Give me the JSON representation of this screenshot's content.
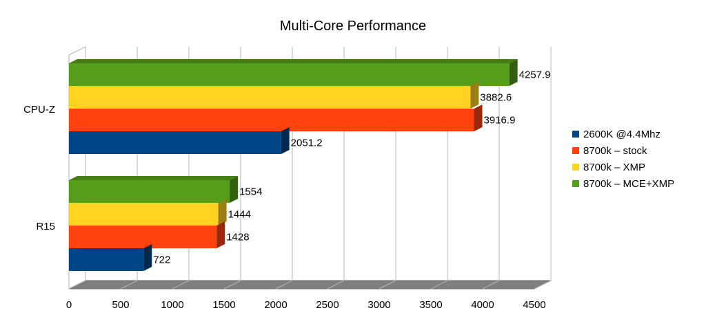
{
  "chart_data": {
    "type": "bar",
    "orientation": "horizontal",
    "title": "Multi-Core Performance",
    "categories": [
      "CPU-Z",
      "R15"
    ],
    "series": [
      {
        "name": "2600K @4.4Mhz",
        "values": [
          2051.2,
          722
        ],
        "color": "#004586",
        "labels": [
          "2051.2",
          "722"
        ]
      },
      {
        "name": "8700k – stock",
        "values": [
          3916.9,
          1428
        ],
        "color": "#ff420e",
        "labels": [
          "3916.9",
          "1428"
        ]
      },
      {
        "name": "8700k – XMP",
        "values": [
          3882.6,
          1444
        ],
        "color": "#ffd320",
        "labels": [
          "3882.6",
          "1444"
        ]
      },
      {
        "name": "8700k – MCE+XMP",
        "values": [
          4257.9,
          1554
        ],
        "color": "#579d1c",
        "labels": [
          "4257.9",
          "1554"
        ]
      }
    ],
    "xlim": [
      0,
      4500
    ],
    "xticks": [
      "0",
      "500",
      "1000",
      "1500",
      "2000",
      "2500",
      "3000",
      "3500",
      "4000",
      "4500"
    ],
    "grid": true,
    "legend_position": "right"
  }
}
